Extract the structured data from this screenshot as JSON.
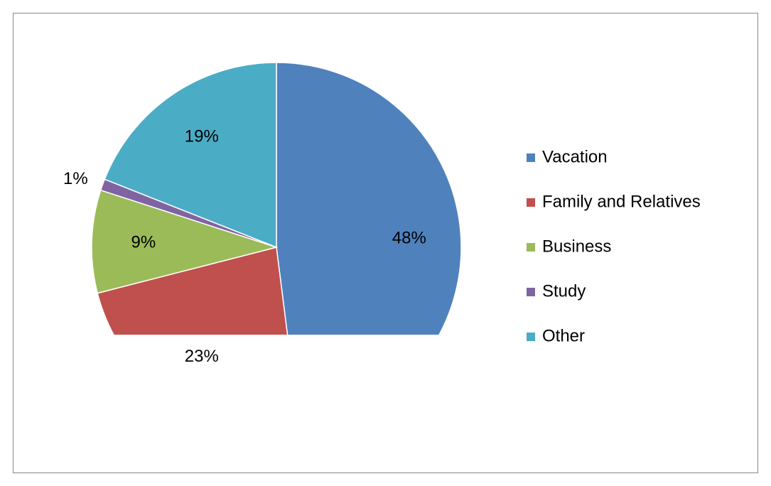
{
  "chart_data": {
    "type": "pie",
    "categories": [
      "Vacation",
      "Family and Relatives",
      "Business",
      "Study",
      "Other"
    ],
    "values": [
      48,
      23,
      9,
      1,
      19
    ],
    "value_labels": [
      "48%",
      "23%",
      "9%",
      "1%",
      "19%"
    ],
    "colors": [
      "#4f81bd",
      "#c0504d",
      "#9bbb59",
      "#8064a2",
      "#4bacc6"
    ],
    "legend": "right"
  }
}
